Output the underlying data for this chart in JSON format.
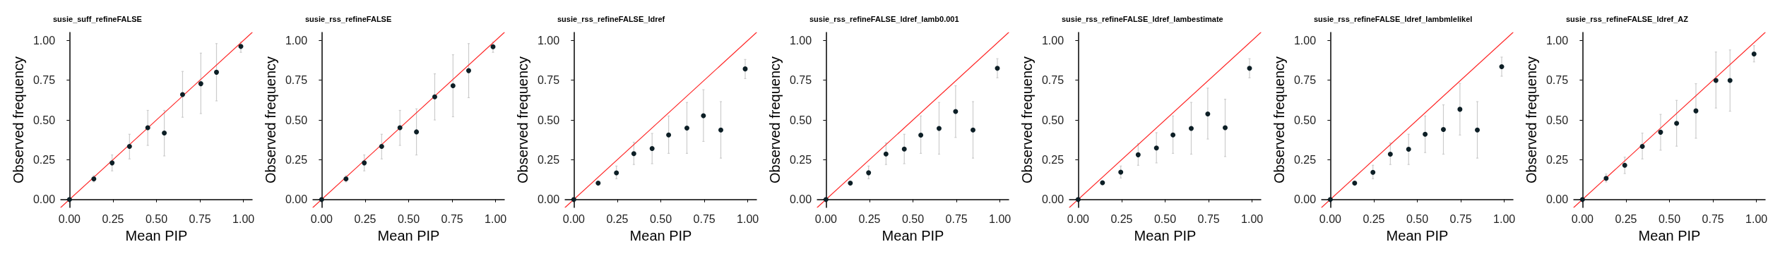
{
  "chart_data": [
    {
      "type": "scatter",
      "title": "susie_suff_refineFALSE",
      "xlabel": "Mean PIP",
      "ylabel": "Observed frequency",
      "xlim": [
        -0.05,
        1.05
      ],
      "ylim": [
        -0.05,
        1.05
      ],
      "xticks": [
        {
          "value": 0,
          "label": "0.00"
        },
        {
          "value": 0.25,
          "label": "0.25"
        },
        {
          "value": 0.5,
          "label": "0.50"
        },
        {
          "value": 0.75,
          "label": "0.75"
        },
        {
          "value": 1,
          "label": "1.00"
        }
      ],
      "yticks": [
        {
          "value": 0,
          "label": "0.00"
        },
        {
          "value": 0.25,
          "label": "0.25"
        },
        {
          "value": 0.5,
          "label": "0.50"
        },
        {
          "value": 0.75,
          "label": "0.75"
        },
        {
          "value": 1,
          "label": "1.00"
        }
      ],
      "grid": false,
      "series": [
        {
          "type": "line",
          "marker": "none",
          "color": "#ff2a2a",
          "x": [
            -0.05,
            1.05
          ],
          "values": [
            -0.05,
            1.05
          ]
        },
        {
          "marker": "circle",
          "color": "#0d1f26",
          "x": [
            0,
            0.14,
            0.245,
            0.345,
            0.45,
            0.545,
            0.65,
            0.755,
            0.845,
            0.985
          ],
          "values": [
            0,
            0.13,
            0.23,
            0.334,
            0.451,
            0.418,
            0.66,
            0.728,
            0.8,
            0.962
          ],
          "errors": [
            null,
            [
              0.11,
              0.15
            ],
            [
              0.18,
              0.28
            ],
            [
              0.255,
              0.41
            ],
            [
              0.34,
              0.56
            ],
            [
              0.274,
              0.56
            ],
            [
              0.517,
              0.805
            ],
            [
              0.54,
              0.92
            ],
            [
              0.62,
              0.98
            ],
            [
              0.925,
              0.99
            ]
          ]
        }
      ]
    },
    {
      "type": "scatter",
      "title": "susie_rss_refineFALSE",
      "xlabel": "Mean PIP",
      "ylabel": "Observed frequency",
      "xlim": [
        -0.05,
        1.05
      ],
      "ylim": [
        -0.05,
        1.05
      ],
      "xticks": [
        {
          "value": 0,
          "label": "0.00"
        },
        {
          "value": 0.25,
          "label": "0.25"
        },
        {
          "value": 0.5,
          "label": "0.50"
        },
        {
          "value": 0.75,
          "label": "0.75"
        },
        {
          "value": 1,
          "label": "1.00"
        }
      ],
      "yticks": [
        {
          "value": 0,
          "label": "0.00"
        },
        {
          "value": 0.25,
          "label": "0.25"
        },
        {
          "value": 0.5,
          "label": "0.50"
        },
        {
          "value": 0.75,
          "label": "0.75"
        },
        {
          "value": 1,
          "label": "1.00"
        }
      ],
      "grid": false,
      "series": [
        {
          "type": "line",
          "marker": "none",
          "color": "#ff2a2a",
          "x": [
            -0.05,
            1.05
          ],
          "values": [
            -0.05,
            1.05
          ]
        },
        {
          "marker": "circle",
          "color": "#0d1f26",
          "x": [
            0,
            0.14,
            0.245,
            0.345,
            0.45,
            0.545,
            0.65,
            0.755,
            0.845,
            0.985
          ],
          "values": [
            0,
            0.13,
            0.23,
            0.334,
            0.451,
            0.425,
            0.645,
            0.715,
            0.81,
            0.96
          ],
          "errors": [
            null,
            [
              0.11,
              0.15
            ],
            [
              0.18,
              0.28
            ],
            [
              0.255,
              0.41
            ],
            [
              0.34,
              0.56
            ],
            [
              0.28,
              0.57
            ],
            [
              0.5,
              0.79
            ],
            [
              0.52,
              0.91
            ],
            [
              0.64,
              0.98
            ],
            [
              0.925,
              0.99
            ]
          ]
        }
      ]
    },
    {
      "type": "scatter",
      "title": "susie_rss_refineFALSE_ldref",
      "xlabel": "Mean PIP",
      "ylabel": "Observed frequency",
      "xlim": [
        -0.05,
        1.05
      ],
      "ylim": [
        -0.05,
        1.05
      ],
      "xticks": [
        {
          "value": 0,
          "label": "0.00"
        },
        {
          "value": 0.25,
          "label": "0.25"
        },
        {
          "value": 0.5,
          "label": "0.50"
        },
        {
          "value": 0.75,
          "label": "0.75"
        },
        {
          "value": 1,
          "label": "1.00"
        }
      ],
      "yticks": [
        {
          "value": 0,
          "label": "0.00"
        },
        {
          "value": 0.25,
          "label": "0.25"
        },
        {
          "value": 0.5,
          "label": "0.50"
        },
        {
          "value": 0.75,
          "label": "0.75"
        },
        {
          "value": 1,
          "label": "1.00"
        }
      ],
      "grid": false,
      "series": [
        {
          "type": "line",
          "marker": "none",
          "color": "#ff2a2a",
          "x": [
            -0.05,
            1.05
          ],
          "values": [
            -0.05,
            1.05
          ]
        },
        {
          "marker": "circle",
          "color": "#0d1f26",
          "x": [
            0,
            0.14,
            0.245,
            0.345,
            0.45,
            0.545,
            0.65,
            0.745,
            0.845,
            0.985
          ],
          "values": [
            0,
            0.103,
            0.167,
            0.288,
            0.32,
            0.406,
            0.449,
            0.527,
            0.437,
            0.821
          ],
          "errors": [
            null,
            null,
            [
              0.13,
              0.21
            ],
            [
              0.22,
              0.36
            ],
            [
              0.225,
              0.415
            ],
            [
              0.29,
              0.525
            ],
            [
              0.29,
              0.61
            ],
            [
              0.365,
              0.69
            ],
            [
              0.26,
              0.615
            ],
            [
              0.76,
              0.88
            ]
          ]
        }
      ]
    },
    {
      "type": "scatter",
      "title": "susie_rss_refineFALSE_ldref_lamb0.001",
      "xlabel": "Mean PIP",
      "ylabel": "Observed frequency",
      "xlim": [
        -0.05,
        1.05
      ],
      "ylim": [
        -0.05,
        1.05
      ],
      "xticks": [
        {
          "value": 0,
          "label": "0.00"
        },
        {
          "value": 0.25,
          "label": "0.25"
        },
        {
          "value": 0.5,
          "label": "0.50"
        },
        {
          "value": 0.75,
          "label": "0.75"
        },
        {
          "value": 1,
          "label": "1.00"
        }
      ],
      "yticks": [
        {
          "value": 0,
          "label": "0.00"
        },
        {
          "value": 0.25,
          "label": "0.25"
        },
        {
          "value": 0.5,
          "label": "0.50"
        },
        {
          "value": 0.75,
          "label": "0.75"
        },
        {
          "value": 1,
          "label": "1.00"
        }
      ],
      "grid": false,
      "series": [
        {
          "type": "line",
          "marker": "none",
          "color": "#ff2a2a",
          "x": [
            -0.05,
            1.05
          ],
          "values": [
            -0.05,
            1.05
          ]
        },
        {
          "marker": "circle",
          "color": "#0d1f26",
          "x": [
            0,
            0.14,
            0.245,
            0.345,
            0.45,
            0.545,
            0.65,
            0.745,
            0.845,
            0.985
          ],
          "values": [
            0,
            0.103,
            0.168,
            0.286,
            0.317,
            0.405,
            0.447,
            0.553,
            0.437,
            0.825
          ],
          "errors": [
            null,
            null,
            [
              0.13,
              0.21
            ],
            [
              0.22,
              0.355
            ],
            [
              0.225,
              0.41
            ],
            [
              0.29,
              0.525
            ],
            [
              0.285,
              0.61
            ],
            [
              0.39,
              0.715
            ],
            [
              0.26,
              0.615
            ],
            [
              0.765,
              0.885
            ]
          ]
        }
      ]
    },
    {
      "type": "scatter",
      "title": "susie_rss_refineFALSE_ldref_lambestimate",
      "xlabel": "Mean PIP",
      "ylabel": "Observed frequency",
      "xlim": [
        -0.05,
        1.05
      ],
      "ylim": [
        -0.05,
        1.05
      ],
      "xticks": [
        {
          "value": 0,
          "label": "0.00"
        },
        {
          "value": 0.25,
          "label": "0.25"
        },
        {
          "value": 0.5,
          "label": "0.50"
        },
        {
          "value": 0.75,
          "label": "0.75"
        },
        {
          "value": 1,
          "label": "1.00"
        }
      ],
      "yticks": [
        {
          "value": 0,
          "label": "0.00"
        },
        {
          "value": 0.25,
          "label": "0.25"
        },
        {
          "value": 0.5,
          "label": "0.50"
        },
        {
          "value": 0.75,
          "label": "0.75"
        },
        {
          "value": 1,
          "label": "1.00"
        }
      ],
      "grid": false,
      "series": [
        {
          "type": "line",
          "marker": "none",
          "color": "#ff2a2a",
          "x": [
            -0.05,
            1.05
          ],
          "values": [
            -0.05,
            1.05
          ]
        },
        {
          "marker": "circle",
          "color": "#0d1f26",
          "x": [
            0,
            0.14,
            0.245,
            0.345,
            0.45,
            0.545,
            0.65,
            0.745,
            0.845,
            0.985
          ],
          "values": [
            0,
            0.105,
            0.172,
            0.281,
            0.324,
            0.406,
            0.447,
            0.538,
            0.451,
            0.825
          ],
          "errors": [
            null,
            null,
            [
              0.135,
              0.21
            ],
            [
              0.215,
              0.35
            ],
            [
              0.23,
              0.42
            ],
            [
              0.29,
              0.525
            ],
            [
              0.285,
              0.61
            ],
            [
              0.38,
              0.7
            ],
            [
              0.27,
              0.63
            ],
            [
              0.765,
              0.885
            ]
          ]
        }
      ]
    },
    {
      "type": "scatter",
      "title": "susie_rss_refineFALSE_ldref_lambmlelikel",
      "xlabel": "Mean PIP",
      "ylabel": "Observed frequency",
      "xlim": [
        -0.05,
        1.05
      ],
      "ylim": [
        -0.05,
        1.05
      ],
      "xticks": [
        {
          "value": 0,
          "label": "0.00"
        },
        {
          "value": 0.25,
          "label": "0.25"
        },
        {
          "value": 0.5,
          "label": "0.50"
        },
        {
          "value": 0.75,
          "label": "0.75"
        },
        {
          "value": 1,
          "label": "1.00"
        }
      ],
      "yticks": [
        {
          "value": 0,
          "label": "0.00"
        },
        {
          "value": 0.25,
          "label": "0.25"
        },
        {
          "value": 0.5,
          "label": "0.50"
        },
        {
          "value": 0.75,
          "label": "0.75"
        },
        {
          "value": 1,
          "label": "1.00"
        }
      ],
      "grid": false,
      "series": [
        {
          "type": "line",
          "marker": "none",
          "color": "#ff2a2a",
          "x": [
            -0.05,
            1.05
          ],
          "values": [
            -0.05,
            1.05
          ]
        },
        {
          "marker": "circle",
          "color": "#0d1f26",
          "x": [
            0,
            0.14,
            0.245,
            0.345,
            0.45,
            0.545,
            0.65,
            0.745,
            0.845,
            0.985
          ],
          "values": [
            0,
            0.103,
            0.171,
            0.285,
            0.316,
            0.41,
            0.44,
            0.567,
            0.437,
            0.835
          ],
          "errors": [
            null,
            null,
            [
              0.13,
              0.215
            ],
            [
              0.22,
              0.355
            ],
            [
              0.22,
              0.41
            ],
            [
              0.295,
              0.525
            ],
            [
              0.285,
              0.595
            ],
            [
              0.405,
              0.73
            ],
            [
              0.26,
              0.615
            ],
            [
              0.775,
              0.895
            ]
          ]
        }
      ]
    },
    {
      "type": "scatter",
      "title": "susie_rss_refineFALSE_ldref_AZ",
      "xlabel": "Mean PIP",
      "ylabel": "Observed frequency",
      "xlim": [
        -0.05,
        1.05
      ],
      "ylim": [
        -0.05,
        1.05
      ],
      "xticks": [
        {
          "value": 0,
          "label": "0.00"
        },
        {
          "value": 0.25,
          "label": "0.25"
        },
        {
          "value": 0.5,
          "label": "0.50"
        },
        {
          "value": 0.75,
          "label": "0.75"
        },
        {
          "value": 1,
          "label": "1.00"
        }
      ],
      "yticks": [
        {
          "value": 0,
          "label": "0.00"
        },
        {
          "value": 0.25,
          "label": "0.25"
        },
        {
          "value": 0.5,
          "label": "0.50"
        },
        {
          "value": 0.75,
          "label": "0.75"
        },
        {
          "value": 1,
          "label": "1.00"
        }
      ],
      "grid": false,
      "series": [
        {
          "type": "line",
          "marker": "none",
          "color": "#ff2a2a",
          "x": [
            -0.05,
            1.05
          ],
          "values": [
            -0.05,
            1.05
          ]
        },
        {
          "marker": "circle",
          "color": "#0d1f26",
          "x": [
            0,
            0.136,
            0.243,
            0.344,
            0.449,
            0.541,
            0.652,
            0.767,
            0.848,
            0.986
          ],
          "values": [
            0,
            0.133,
            0.215,
            0.334,
            0.423,
            0.479,
            0.557,
            0.748,
            0.748,
            0.915
          ],
          "errors": [
            null,
            [
              0.11,
              0.16
            ],
            [
              0.163,
              0.266
            ],
            [
              0.255,
              0.417
            ],
            [
              0.31,
              0.535
            ],
            [
              0.335,
              0.623
            ],
            [
              0.385,
              0.728
            ],
            [
              0.575,
              0.927
            ],
            [
              0.555,
              0.94
            ],
            [
              0.865,
              0.967
            ]
          ]
        }
      ]
    }
  ]
}
